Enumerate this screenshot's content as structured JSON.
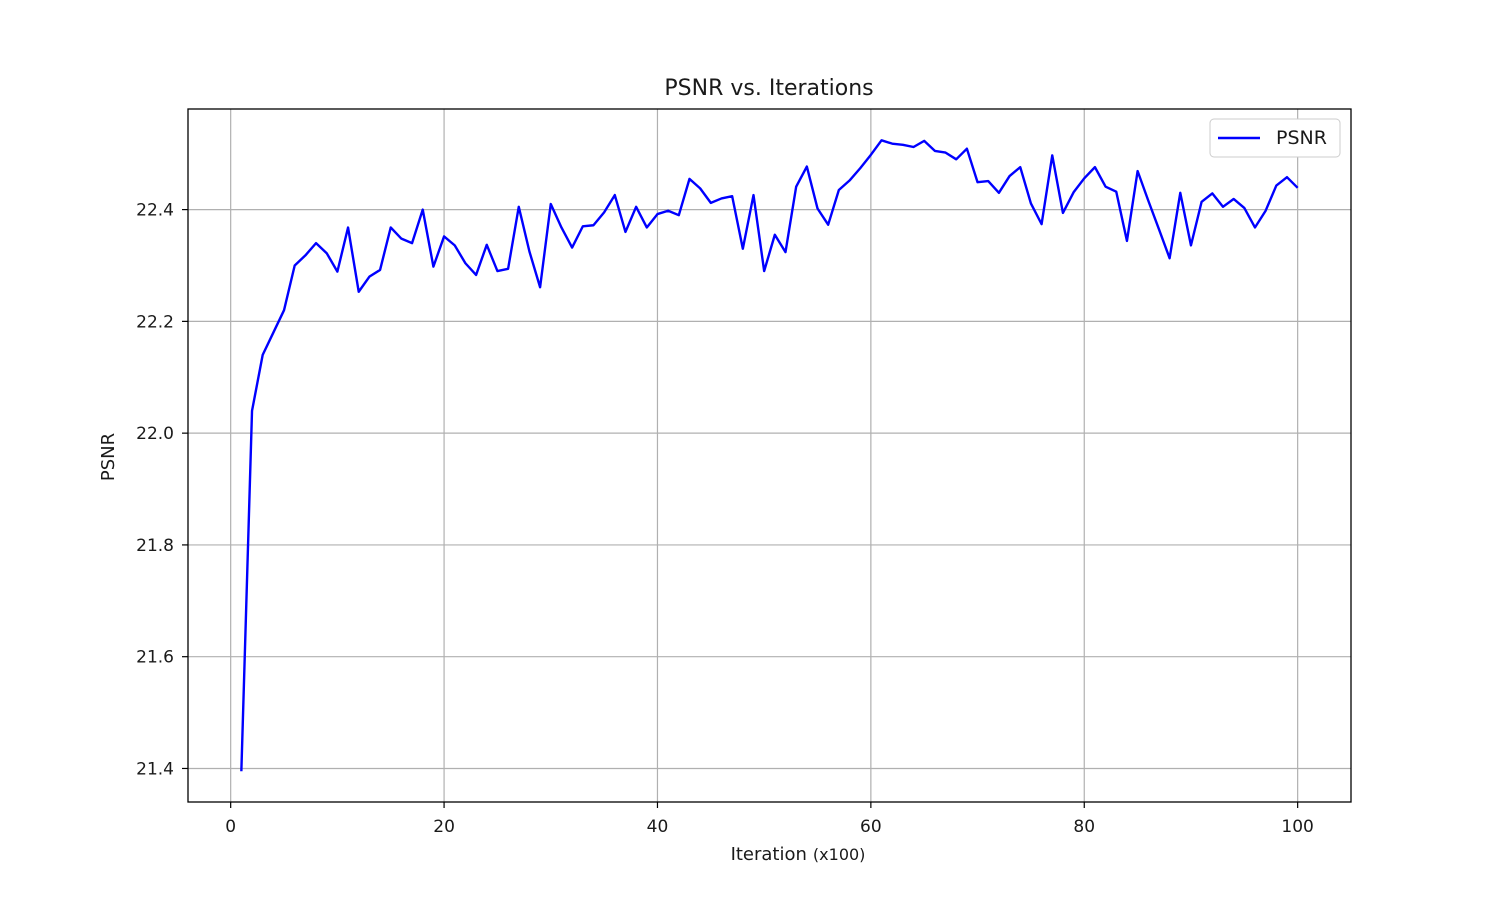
{
  "chart_data": {
    "type": "line",
    "title": "PSNR vs. Iterations",
    "xlabel": "Iteration",
    "xlabel_note": "(x100)",
    "ylabel": "PSNR",
    "xlim": [
      -4,
      105
    ],
    "ylim": [
      21.34,
      22.58
    ],
    "xticks": [
      0,
      20,
      40,
      60,
      80,
      100
    ],
    "yticks": [
      21.4,
      21.6,
      21.8,
      22.0,
      22.2,
      22.4
    ],
    "ytick_labels": [
      "21.4",
      "21.6",
      "21.8",
      "22.0",
      "22.2",
      "22.4"
    ],
    "grid": true,
    "legend_position": "top-right",
    "series": [
      {
        "name": "PSNR",
        "color": "#0000ff",
        "x": [
          1,
          2,
          3,
          4,
          5,
          6,
          7,
          8,
          9,
          10,
          11,
          12,
          13,
          14,
          15,
          16,
          17,
          18,
          19,
          20,
          21,
          22,
          23,
          24,
          25,
          26,
          27,
          28,
          29,
          30,
          31,
          32,
          33,
          34,
          35,
          36,
          37,
          38,
          39,
          40,
          41,
          42,
          43,
          44,
          45,
          46,
          47,
          48,
          49,
          50,
          51,
          52,
          53,
          54,
          55,
          56,
          57,
          58,
          59,
          60,
          61,
          62,
          63,
          64,
          65,
          66,
          67,
          68,
          69,
          70,
          71,
          72,
          73,
          74,
          75,
          76,
          77,
          78,
          79,
          80,
          81,
          82,
          83,
          84,
          85,
          86,
          87,
          88,
          89,
          90,
          91,
          92,
          93,
          94,
          95,
          96,
          97,
          98,
          99,
          100
        ],
        "y": [
          21.395,
          22.04,
          22.14,
          22.18,
          22.22,
          22.3,
          22.318,
          22.34,
          22.322,
          22.289,
          22.368,
          22.253,
          22.28,
          22.292,
          22.368,
          22.348,
          22.34,
          22.4,
          22.298,
          22.352,
          22.336,
          22.304,
          22.283,
          22.337,
          22.29,
          22.294,
          22.405,
          22.325,
          22.261,
          22.41,
          22.368,
          22.332,
          22.37,
          22.372,
          22.395,
          22.426,
          22.36,
          22.405,
          22.368,
          22.392,
          22.398,
          22.39,
          22.455,
          22.438,
          22.412,
          22.42,
          22.424,
          22.33,
          22.426,
          22.29,
          22.355,
          22.324,
          22.441,
          22.477,
          22.402,
          22.373,
          22.435,
          22.452,
          22.474,
          22.498,
          22.524,
          22.518,
          22.516,
          22.512,
          22.523,
          22.505,
          22.502,
          22.49,
          22.509,
          22.449,
          22.451,
          22.43,
          22.46,
          22.476,
          22.411,
          22.374,
          22.497,
          22.394,
          22.431,
          22.456,
          22.476,
          22.441,
          22.432,
          22.344,
          22.469,
          22.416,
          22.365,
          22.313,
          22.43,
          22.336,
          22.414,
          22.429,
          22.405,
          22.419,
          22.403,
          22.368,
          22.398,
          22.443,
          22.458,
          22.439
        ]
      }
    ]
  }
}
